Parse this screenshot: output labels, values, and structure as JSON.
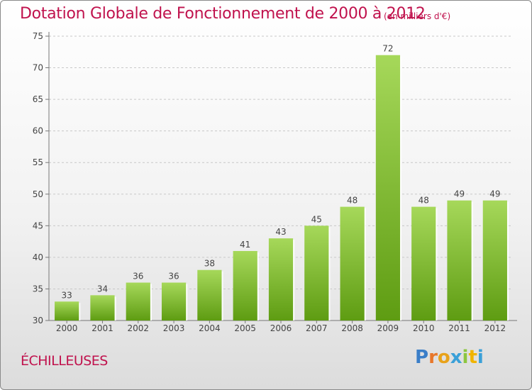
{
  "chart_data": {
    "type": "bar",
    "title": "Dotation Globale de Fonctionnement de 2000 à 2012",
    "subtitle": "(en milliers d'€)",
    "categories": [
      "2000",
      "2001",
      "2002",
      "2003",
      "2004",
      "2005",
      "2006",
      "2007",
      "2008",
      "2009",
      "2010",
      "2011",
      "2012"
    ],
    "values": [
      33,
      34,
      36,
      36,
      38,
      41,
      43,
      45,
      48,
      72,
      48,
      49,
      49
    ],
    "ylim": [
      30,
      75
    ],
    "yticks": [
      30,
      35,
      40,
      45,
      50,
      55,
      60,
      65,
      70,
      75
    ],
    "xlabel": "",
    "ylabel": "",
    "grid": "horizontal dashed",
    "legend": "none",
    "bar_color_top": "#a6d85a",
    "bar_color_bottom": "#5e9c12"
  },
  "footer": {
    "commune": "ÉCHILLEUSES",
    "logo_letters": [
      "P",
      "r",
      "o",
      "x",
      "i",
      "t",
      "i"
    ],
    "logo_colors": [
      "#3a7ec8",
      "#e8772a",
      "#e8a21a",
      "#3aa0d8",
      "#8cc63f",
      "#f0b400",
      "#3aa0d8"
    ]
  },
  "colors": {
    "title": "#c0124d",
    "axis": "#555555"
  }
}
